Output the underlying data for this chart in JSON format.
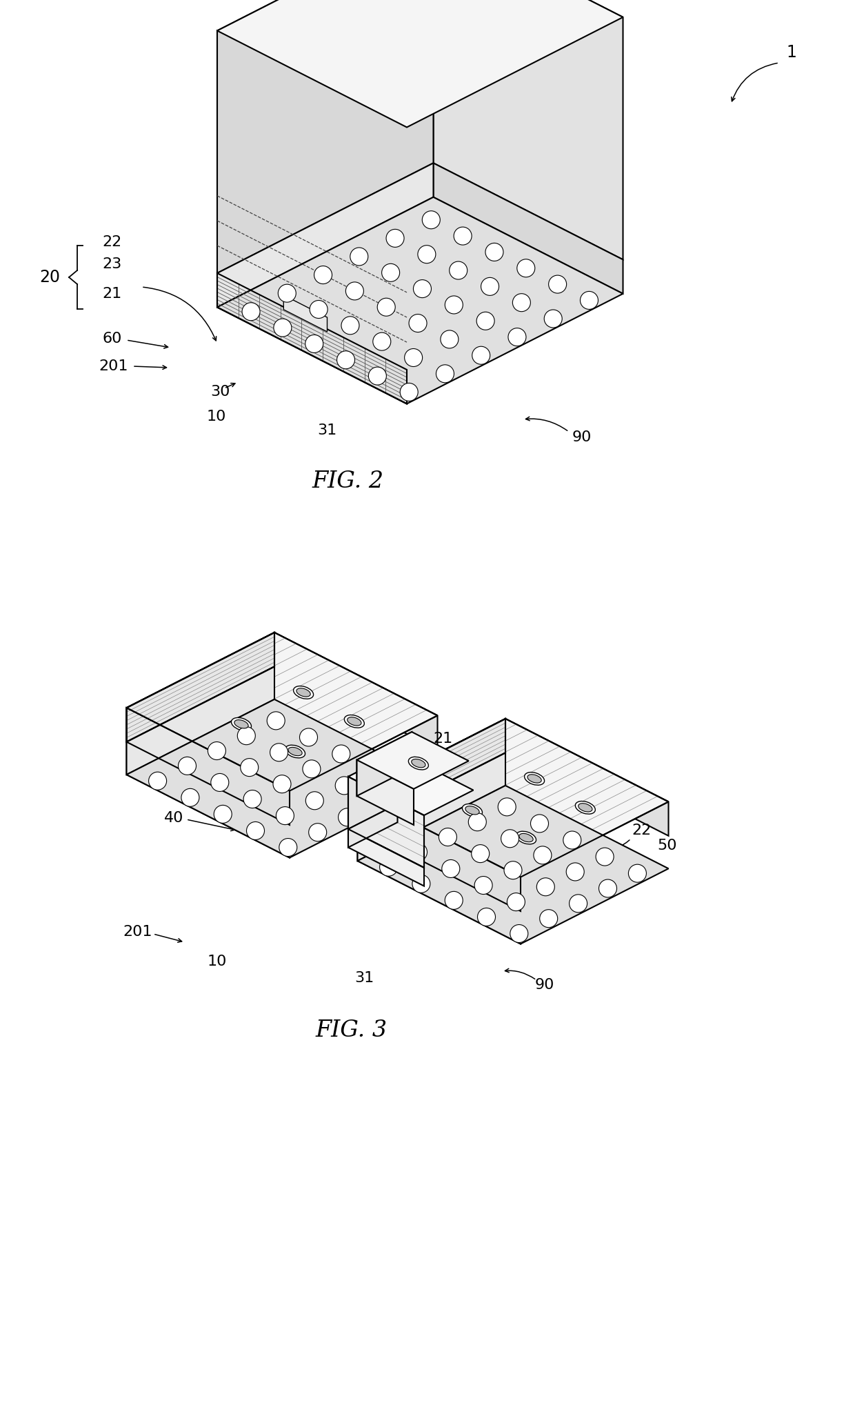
{
  "fig_width": 12.4,
  "fig_height": 20.66,
  "background_color": "#ffffff",
  "line_color": "#000000",
  "line_width": 1.5,
  "fig2_label": "FIG. 2",
  "fig3_label": "FIG. 3",
  "label_fontsize": 24,
  "annotation_fontsize": 17,
  "sx": 0.55,
  "sy": 0.28,
  "sz": 0.95
}
